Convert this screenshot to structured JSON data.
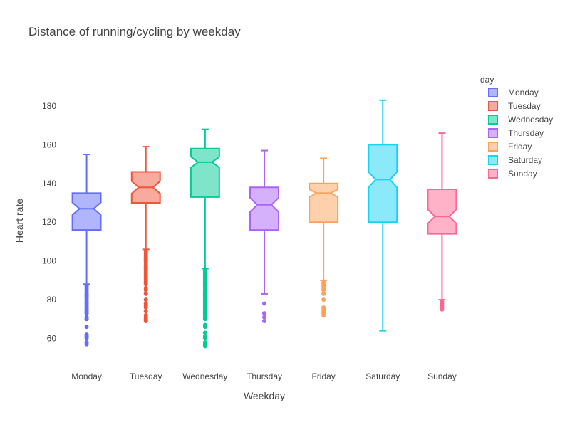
{
  "chart_data": {
    "type": "box",
    "title": "Distance of running/cycling by weekday",
    "xlabel": "Weekday",
    "ylabel": "Heart rate",
    "ylim": [
      51,
      198
    ],
    "yticks": [
      60,
      80,
      100,
      120,
      140,
      160,
      180
    ],
    "grid": false,
    "notched": true,
    "legend": {
      "title": "day",
      "position": "top-right"
    },
    "categories": [
      "Monday",
      "Tuesday",
      "Wednesday",
      "Thursday",
      "Friday",
      "Saturday",
      "Sunday"
    ],
    "series": [
      {
        "name": "Monday",
        "color": "#636efa",
        "min": 88,
        "q1": 116,
        "median": 127,
        "q3": 135,
        "max": 155,
        "outliers": [
          87,
          86,
          85,
          84,
          83,
          82,
          81,
          80,
          79,
          78,
          77,
          76,
          75,
          74,
          73,
          71,
          70,
          66,
          62,
          61,
          60,
          58,
          57
        ]
      },
      {
        "name": "Tuesday",
        "color": "#ef553b",
        "min": 106,
        "q1": 130,
        "median": 138,
        "q3": 146,
        "max": 159,
        "outliers": [
          105,
          104,
          103,
          102,
          101,
          100,
          99,
          98,
          97,
          96,
          95,
          94,
          93,
          92,
          91,
          90,
          89,
          88,
          86,
          85,
          83,
          80,
          78,
          77,
          76,
          74,
          72,
          71,
          70,
          69
        ]
      },
      {
        "name": "Wednesday",
        "color": "#00cc96",
        "min": 96,
        "q1": 133,
        "median": 151,
        "q3": 158,
        "max": 168,
        "outliers": [
          95,
          94,
          93,
          92,
          91,
          90,
          89,
          88,
          87,
          86,
          85,
          84,
          83,
          82,
          81,
          80,
          79,
          78,
          77,
          76,
          75,
          74,
          73,
          72,
          71,
          70,
          67,
          66,
          63,
          61,
          60,
          58,
          57,
          56
        ]
      },
      {
        "name": "Thursday",
        "color": "#ab63fa",
        "min": 83,
        "q1": 116,
        "median": 129,
        "q3": 138,
        "max": 157,
        "outliers": [
          78,
          73,
          71,
          69
        ]
      },
      {
        "name": "Friday",
        "color": "#ffa15a",
        "min": 90,
        "q1": 120,
        "median": 135,
        "q3": 140,
        "max": 153,
        "outliers": [
          89,
          88,
          87,
          86,
          85,
          83,
          80,
          76,
          75,
          74,
          73,
          72
        ]
      },
      {
        "name": "Saturday",
        "color": "#19d3f3",
        "min": 64,
        "q1": 120,
        "median": 142,
        "q3": 160,
        "max": 183,
        "outliers": []
      },
      {
        "name": "Sunday",
        "color": "#ff6692",
        "min": 80,
        "q1": 114,
        "median": 123,
        "q3": 137,
        "max": 166,
        "outliers": [
          79,
          78,
          77,
          76,
          75
        ]
      }
    ]
  }
}
